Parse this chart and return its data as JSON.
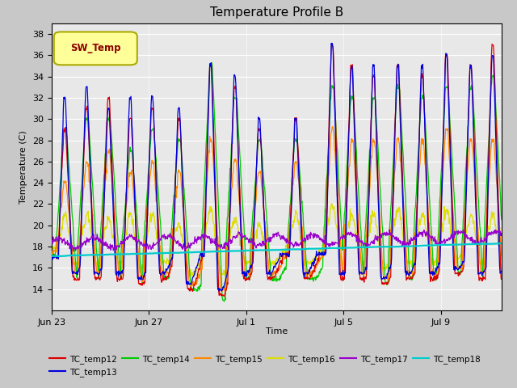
{
  "title": "Temperature Profile B",
  "xlabel": "Time",
  "ylabel": "Temperature (C)",
  "ylim": [
    12,
    39
  ],
  "yticks": [
    14,
    16,
    18,
    20,
    22,
    24,
    26,
    28,
    30,
    32,
    34,
    36,
    38
  ],
  "fig_bg_color": "#c8c8c8",
  "plot_bg_color": "#e8e8e8",
  "sw_temp_label": "SW_Temp",
  "sw_temp_box_facecolor": "#ffff99",
  "sw_temp_box_edgecolor": "#aaaa00",
  "sw_temp_text_color": "#8b0000",
  "series_colors": {
    "TC_temp12": "#dd0000",
    "TC_temp13": "#0000dd",
    "TC_temp14": "#00cc00",
    "TC_temp15": "#ff8800",
    "TC_temp16": "#dddd00",
    "TC_temp17": "#9900cc",
    "TC_temp18": "#00cccc"
  },
  "x_tick_labels": [
    "Jun 23",
    "Jun 27",
    "Jul 1",
    "Jul 5",
    "Jul 9"
  ],
  "x_tick_positions": [
    0,
    4,
    8,
    12,
    16
  ],
  "xlim": [
    0,
    18.5
  ],
  "n_points": 1000
}
